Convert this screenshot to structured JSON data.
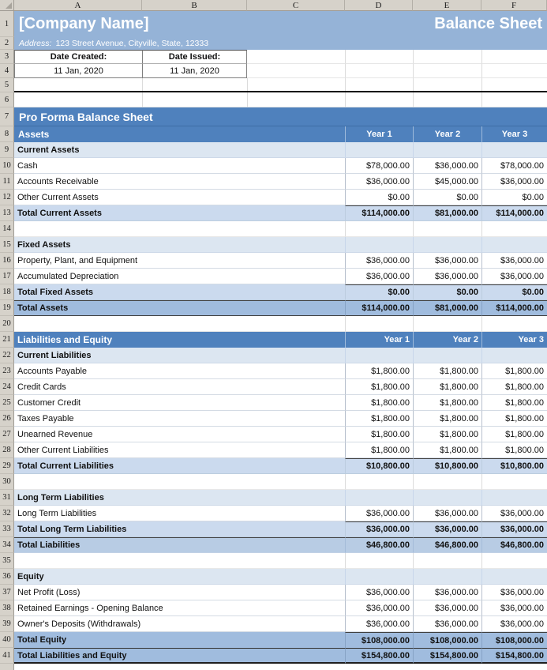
{
  "grid": {
    "columns": [
      "A",
      "B",
      "C",
      "D",
      "E",
      "F"
    ],
    "row_numbers": [
      "1",
      "2",
      "3",
      "4",
      "5",
      "6",
      "7",
      "8"
    ]
  },
  "header": {
    "company": "[Company Name]",
    "title": "Balance Sheet",
    "address_label": "Address:",
    "address": "123 Street Avenue, Cityville, State, 12333"
  },
  "dates": {
    "created_label": "Date Created:",
    "created_value": "11 Jan, 2020",
    "issued_label": "Date Issued:",
    "issued_value": "11 Jan, 2020"
  },
  "sheet": {
    "title": "Pro Forma Balance Sheet",
    "assets_section_label": "Assets",
    "years": [
      "Year 1",
      "Year 2",
      "Year 3"
    ],
    "rows": [
      {
        "n": 9,
        "type": "section",
        "label": "Current Assets",
        "values": [
          "",
          "",
          ""
        ]
      },
      {
        "n": 10,
        "type": "item",
        "label": "Cash",
        "values": [
          "$78,000.00",
          "$36,000.00",
          "$78,000.00"
        ]
      },
      {
        "n": 11,
        "type": "item",
        "label": "Accounts Receivable",
        "values": [
          "$36,000.00",
          "$45,000.00",
          "$36,000.00"
        ]
      },
      {
        "n": 12,
        "type": "item",
        "label": "Other Current Assets",
        "values": [
          "$0.00",
          "$0.00",
          "$0.00"
        ]
      },
      {
        "n": 13,
        "type": "subtotal",
        "label": "Total Current Assets",
        "values": [
          "$114,000.00",
          "$81,000.00",
          "$114,000.00"
        ]
      },
      {
        "n": 14,
        "type": "blank",
        "label": "",
        "values": [
          "",
          "",
          ""
        ]
      },
      {
        "n": 15,
        "type": "section",
        "label": "Fixed Assets",
        "values": [
          "",
          "",
          ""
        ]
      },
      {
        "n": 16,
        "type": "item",
        "label": "Property, Plant, and Equipment",
        "values": [
          "$36,000.00",
          "$36,000.00",
          "$36,000.00"
        ]
      },
      {
        "n": 17,
        "type": "item",
        "label": "Accumulated Depreciation",
        "values": [
          "$36,000.00",
          "$36,000.00",
          "$36,000.00"
        ]
      },
      {
        "n": 18,
        "type": "subtotal",
        "label": "Total Fixed Assets",
        "values": [
          "$0.00",
          "$0.00",
          "$0.00"
        ]
      },
      {
        "n": 19,
        "type": "grand",
        "label": "Total Assets",
        "values": [
          "$114,000.00",
          "$81,000.00",
          "$114,000.00"
        ]
      },
      {
        "n": 20,
        "type": "blank",
        "label": "",
        "values": [
          "",
          "",
          ""
        ]
      },
      {
        "n": 21,
        "type": "header2",
        "label": "Liabilities and Equity",
        "values": [
          "Year 1",
          "Year 2",
          "Year 3"
        ]
      },
      {
        "n": 22,
        "type": "section",
        "label": "Current Liabilities",
        "values": [
          "",
          "",
          ""
        ]
      },
      {
        "n": 23,
        "type": "item",
        "label": "Accounts Payable",
        "values": [
          "$1,800.00",
          "$1,800.00",
          "$1,800.00"
        ]
      },
      {
        "n": 24,
        "type": "item",
        "label": "Credit Cards",
        "values": [
          "$1,800.00",
          "$1,800.00",
          "$1,800.00"
        ]
      },
      {
        "n": 25,
        "type": "item",
        "label": "Customer Credit",
        "values": [
          "$1,800.00",
          "$1,800.00",
          "$1,800.00"
        ]
      },
      {
        "n": 26,
        "type": "item",
        "label": "Taxes Payable",
        "values": [
          "$1,800.00",
          "$1,800.00",
          "$1,800.00"
        ]
      },
      {
        "n": 27,
        "type": "item",
        "label": "Unearned Revenue",
        "values": [
          "$1,800.00",
          "$1,800.00",
          "$1,800.00"
        ]
      },
      {
        "n": 28,
        "type": "item",
        "label": "Other Current Liabilities",
        "values": [
          "$1,800.00",
          "$1,800.00",
          "$1,800.00"
        ]
      },
      {
        "n": 29,
        "type": "subtotal",
        "label": "Total Current Liabilities",
        "values": [
          "$10,800.00",
          "$10,800.00",
          "$10,800.00"
        ]
      },
      {
        "n": 30,
        "type": "blank",
        "label": "",
        "values": [
          "",
          "",
          ""
        ]
      },
      {
        "n": 31,
        "type": "section",
        "label": "Long Term Liabilities",
        "values": [
          "",
          "",
          ""
        ]
      },
      {
        "n": 32,
        "type": "item",
        "label": "Long Term Liabilities",
        "values": [
          "$36,000.00",
          "$36,000.00",
          "$36,000.00"
        ]
      },
      {
        "n": 33,
        "type": "subtotal",
        "label": "Total Long Term Liabilities",
        "values": [
          "$36,000.00",
          "$36,000.00",
          "$36,000.00"
        ]
      },
      {
        "n": 34,
        "type": "totalliab",
        "label": "Total Liabilities",
        "values": [
          "$46,800.00",
          "$46,800.00",
          "$46,800.00"
        ]
      },
      {
        "n": 35,
        "type": "blank",
        "label": "",
        "values": [
          "",
          "",
          ""
        ]
      },
      {
        "n": 36,
        "type": "section",
        "label": "Equity",
        "values": [
          "",
          "",
          ""
        ]
      },
      {
        "n": 37,
        "type": "item",
        "label": "Net Profit (Loss)",
        "values": [
          "$36,000.00",
          "$36,000.00",
          "$36,000.00"
        ]
      },
      {
        "n": 38,
        "type": "item",
        "label": "Retained Earnings - Opening Balance",
        "values": [
          "$36,000.00",
          "$36,000.00",
          "$36,000.00"
        ]
      },
      {
        "n": 39,
        "type": "item",
        "label": "Owner's Deposits (Withdrawals)",
        "values": [
          "$36,000.00",
          "$36,000.00",
          "$36,000.00"
        ]
      },
      {
        "n": 40,
        "type": "totalequity",
        "label": "Total Equity",
        "values": [
          "$108,000.00",
          "$108,000.00",
          "$108,000.00"
        ]
      },
      {
        "n": 41,
        "type": "grandfinal",
        "label": "Total Liabilities and Equity",
        "values": [
          "$154,800.00",
          "$154,800.00",
          "$154,800.00"
        ]
      }
    ]
  },
  "colors": {
    "title_bar_blue": "#4f81bd",
    "banner_blue": "#95b3d7",
    "section_fill": "#dce6f1",
    "subtotal_fill": "#cbdaee",
    "total_liabilities_fill": "#b8cce4",
    "grand_total_fill": "#a0bcde",
    "header_gray": "#d6d2ca"
  }
}
